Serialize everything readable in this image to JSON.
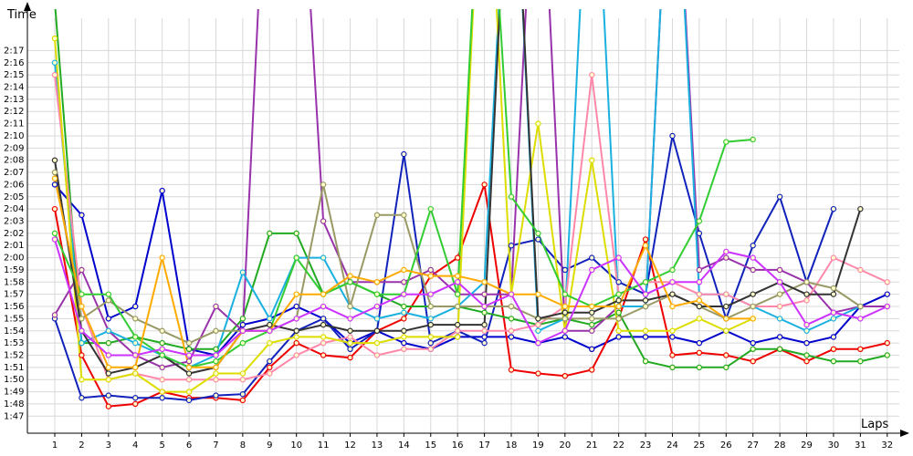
{
  "chart_data": {
    "type": "line",
    "y_label": "Time",
    "x_label": "Laps",
    "grid": true,
    "xlim": [
      -0.02,
      32.45
    ],
    "ylim": [
      105.6,
      140.4
    ],
    "x": [
      1,
      2,
      3,
      4,
      5,
      6,
      7,
      8,
      9,
      10,
      11,
      12,
      13,
      14,
      15,
      16,
      17,
      18,
      19,
      20,
      21,
      22,
      23,
      24,
      25,
      26,
      27,
      28,
      29,
      30,
      31,
      32
    ],
    "xticks": [
      1,
      2,
      3,
      4,
      5,
      6,
      7,
      8,
      9,
      10,
      11,
      12,
      13,
      14,
      15,
      16,
      17,
      18,
      19,
      20,
      21,
      22,
      23,
      24,
      25,
      26,
      27,
      28,
      29,
      30,
      31,
      32
    ],
    "yticks": [
      {
        "value": 107,
        "label": "1:47"
      },
      {
        "value": 108,
        "label": "1:48"
      },
      {
        "value": 109,
        "label": "1:49"
      },
      {
        "value": 110,
        "label": "1:50"
      },
      {
        "value": 111,
        "label": "1:51"
      },
      {
        "value": 112,
        "label": "1:52"
      },
      {
        "value": 113,
        "label": "1:53"
      },
      {
        "value": 114,
        "label": "1:54"
      },
      {
        "value": 115,
        "label": "1:55"
      },
      {
        "value": 116,
        "label": "1:56"
      },
      {
        "value": 117,
        "label": "1:57"
      },
      {
        "value": 118,
        "label": "1:58"
      },
      {
        "value": 119,
        "label": "1:59"
      },
      {
        "value": 120,
        "label": "2:00"
      },
      {
        "value": 121,
        "label": "2:01"
      },
      {
        "value": 122,
        "label": "2:02"
      },
      {
        "value": 123,
        "label": "2:03"
      },
      {
        "value": 124,
        "label": "2:04"
      },
      {
        "value": 125,
        "label": "2:05"
      },
      {
        "value": 126,
        "label": "2:06"
      },
      {
        "value": 127,
        "label": "2:07"
      },
      {
        "value": 128,
        "label": "2:08"
      },
      {
        "value": 129,
        "label": "2:09"
      },
      {
        "value": 130,
        "label": "2:10"
      },
      {
        "value": 131,
        "label": "2:11"
      },
      {
        "value": 132,
        "label": "2:12"
      },
      {
        "value": 133,
        "label": "2:13"
      },
      {
        "value": 134,
        "label": "2:14"
      },
      {
        "value": 135,
        "label": "2:15"
      },
      {
        "value": 136,
        "label": "2:16"
      },
      {
        "value": 137,
        "label": "2:17"
      }
    ],
    "series": [
      {
        "color": "#0000cc",
        "values": [
          126,
          123.5,
          115,
          116,
          125.5,
          112.5,
          112,
          114.5,
          115,
          116,
          115,
          113,
          114,
          113,
          112.5,
          113.5,
          113.5,
          113.5,
          113,
          113.5,
          112.5,
          113.5,
          113.5,
          113.5,
          113,
          114,
          113,
          113.5,
          113,
          113.5,
          116,
          117
        ]
      },
      {
        "color": "#ee0000",
        "values": [
          124,
          112,
          107.8,
          108,
          109,
          108.5,
          108.5,
          108.3,
          111,
          113,
          112,
          111.8,
          114,
          115,
          118.5,
          120,
          126,
          110.8,
          110.5,
          110.3,
          110.8,
          115,
          121.5,
          112,
          112.2,
          112,
          111.5,
          112.5,
          111.5,
          112.5,
          112.5,
          113
        ]
      },
      {
        "color": "#1122bb",
        "values": [
          115,
          108.5,
          108.7,
          108.5,
          108.5,
          108.3,
          108.7,
          108.8,
          111.5,
          114,
          115,
          112.5,
          114,
          128.5,
          113,
          114,
          113,
          121,
          121.5,
          119,
          120,
          118,
          117,
          130,
          122,
          115,
          121,
          125,
          118,
          124,
          null,
          null
        ]
      },
      {
        "color": "#22aa22",
        "values": [
          141,
          113,
          113,
          113.5,
          113,
          112.5,
          112.5,
          115,
          122,
          122,
          117,
          118,
          117,
          116,
          116,
          116,
          115.5,
          115,
          114.5,
          115,
          114.5,
          115.5,
          111.5,
          111,
          111,
          111,
          112.5,
          112.5,
          112,
          111.5,
          111.5,
          112
        ]
      },
      {
        "color": "#9933aa",
        "values": [
          115.3,
          119,
          114,
          112,
          111,
          111.5,
          116,
          114,
          160,
          160,
          123,
          118,
          118,
          118,
          119,
          117,
          117,
          117,
          160,
          114,
          114,
          116,
          116,
          160,
          119,
          120,
          119,
          119,
          118,
          115.5,
          116,
          116
        ]
      },
      {
        "color": "#1ab0e0",
        "values": [
          136,
          113,
          114,
          113,
          112,
          111,
          112,
          118.8,
          115,
          120,
          120,
          116,
          115,
          115.5,
          115,
          116,
          118,
          160,
          114,
          115,
          160,
          116,
          116,
          160,
          117,
          117,
          116,
          115,
          114,
          115,
          116,
          null
        ]
      },
      {
        "color": "#ff88aa",
        "values": [
          135,
          116,
          110,
          110.5,
          110,
          110,
          110,
          110,
          110.5,
          112,
          113,
          113.5,
          112,
          112.5,
          112.5,
          114,
          114,
          114,
          114.5,
          116,
          135,
          117,
          118,
          118,
          117,
          117,
          116,
          116,
          116.5,
          120,
          119,
          118
        ]
      },
      {
        "color": "#dddd00",
        "values": [
          138,
          110,
          110,
          110.5,
          109,
          109,
          110.5,
          110.5,
          113,
          113.5,
          113.5,
          113,
          113,
          113.5,
          113.5,
          113.5,
          160,
          117,
          131,
          114,
          128,
          114,
          114,
          114,
          115,
          114,
          115,
          null,
          null,
          null,
          null,
          null
        ]
      },
      {
        "color": "#999966",
        "values": [
          127,
          115,
          116.5,
          115,
          114,
          113,
          114,
          114,
          114,
          115,
          126,
          116,
          123.5,
          123.5,
          116,
          116,
          116,
          116,
          115,
          115,
          115,
          115,
          116,
          117,
          116,
          115,
          116,
          117,
          118,
          117.5,
          116,
          null
        ]
      },
      {
        "color": "#333333",
        "values": [
          128,
          114,
          110.5,
          111,
          112,
          110.5,
          111,
          114,
          114.5,
          114,
          114.5,
          114,
          114,
          114,
          114.5,
          114.5,
          114.5,
          160,
          115,
          115.5,
          115.5,
          116.5,
          116.5,
          117,
          116,
          116,
          117,
          118,
          117,
          117,
          124,
          null
        ]
      },
      {
        "color": "#33cc33",
        "values": [
          122,
          117,
          117,
          113.5,
          112,
          111,
          111.5,
          113,
          114,
          120,
          117,
          118,
          117,
          117,
          124,
          117,
          160,
          125,
          122,
          117,
          116,
          117,
          118,
          119,
          123,
          129.5,
          129.7,
          null,
          null,
          null,
          null,
          null
        ]
      },
      {
        "color": "#ffaa00",
        "values": [
          126.5,
          116,
          111,
          111,
          120,
          111,
          111,
          114,
          114,
          117,
          117,
          118.5,
          118,
          119,
          118.5,
          118.5,
          118,
          117,
          117,
          116,
          116,
          116,
          121,
          116,
          116.5,
          115,
          115,
          null,
          null,
          null,
          null,
          null
        ]
      },
      {
        "color": "#cc33ff",
        "values": [
          121.5,
          114,
          112,
          112,
          112.5,
          112,
          112,
          114,
          114,
          115,
          116,
          115,
          116,
          117,
          117,
          118,
          116,
          117,
          113,
          114,
          119,
          120,
          117,
          118,
          118,
          120.5,
          120,
          118,
          114.5,
          115.5,
          115,
          116
        ]
      }
    ]
  }
}
